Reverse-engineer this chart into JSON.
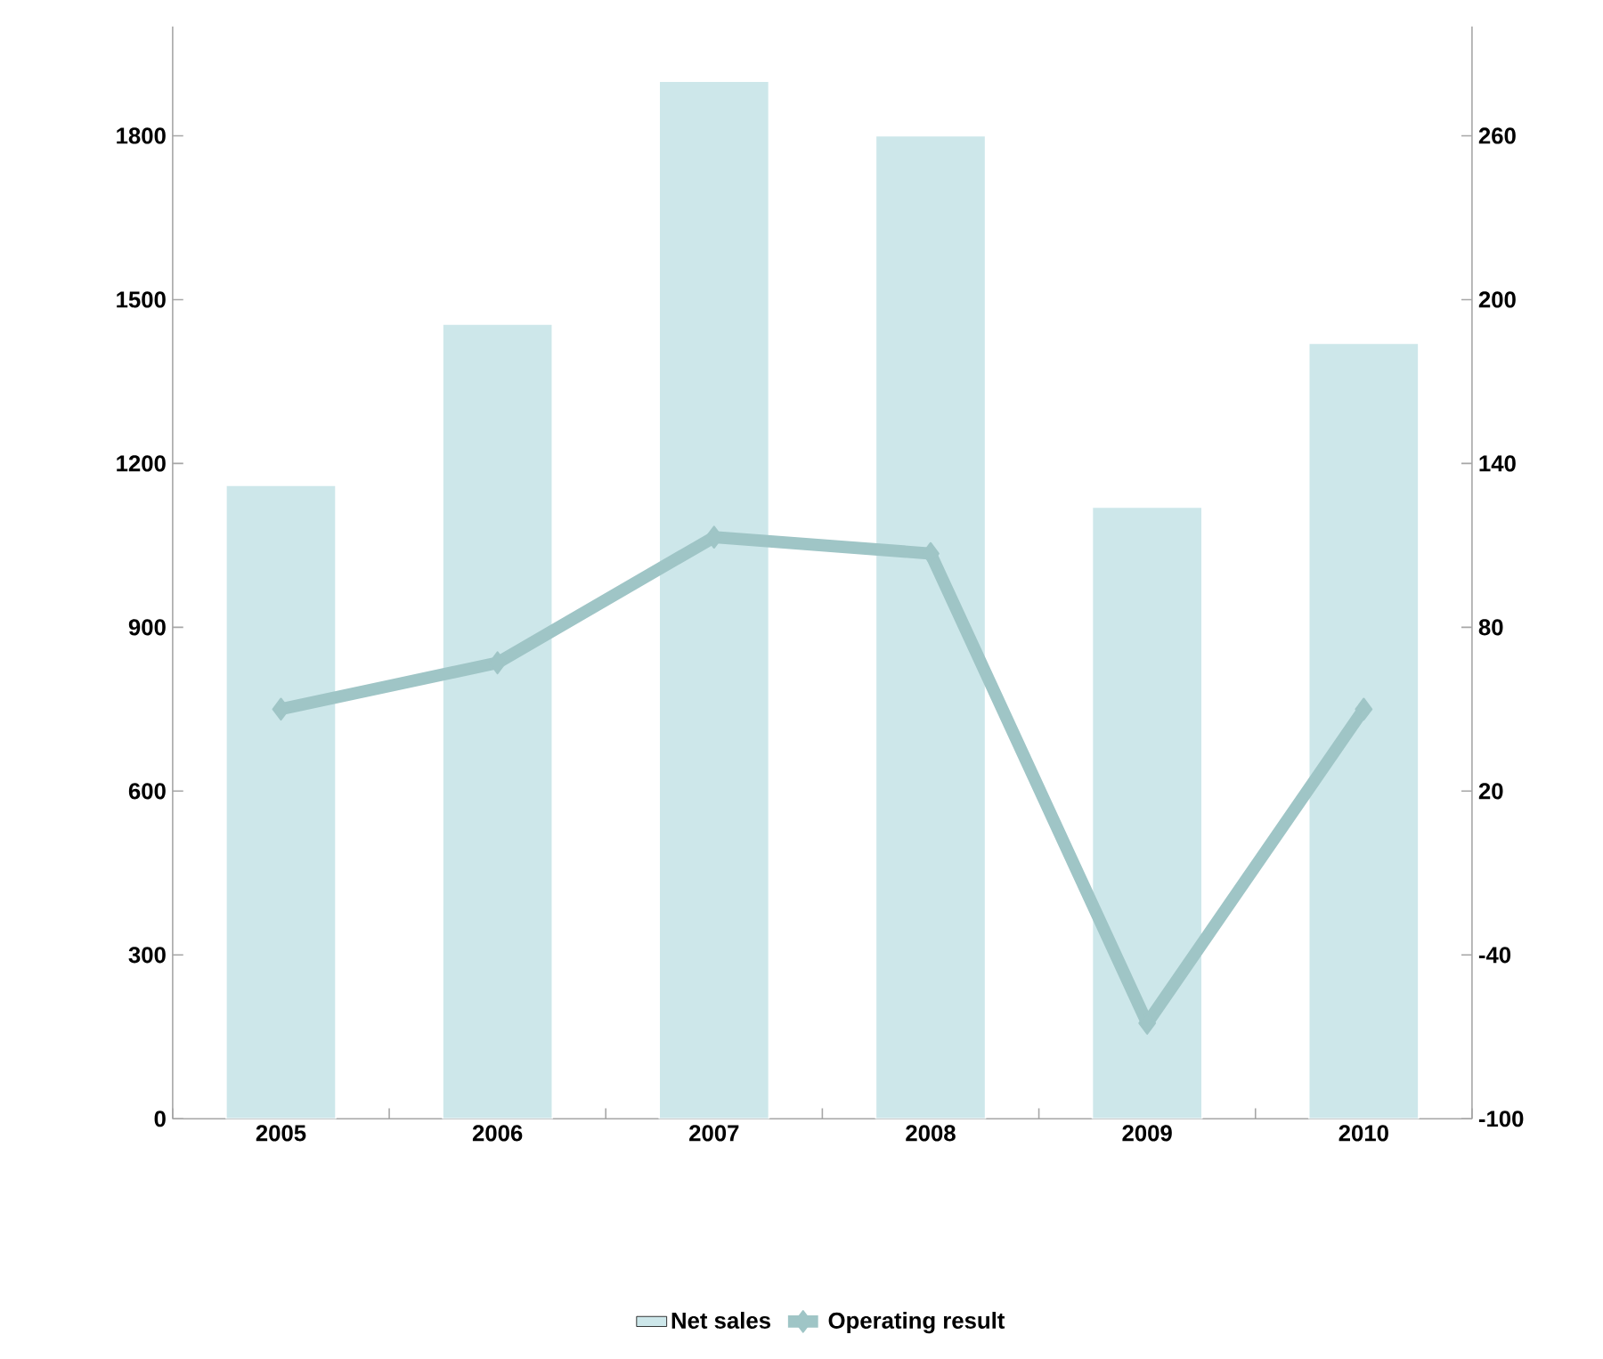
{
  "chart_data": {
    "type": "bar",
    "categories": [
      "2005",
      "2006",
      "2007",
      "2008",
      "2009",
      "2010"
    ],
    "series": [
      {
        "name": "Net sales",
        "color": "#cde7ea",
        "values": [
          1160,
          1455,
          1900,
          1800,
          1120,
          1420
        ]
      },
      {
        "name": "Operating result",
        "type": "line",
        "axis": "y2",
        "color": "#9fc5c6",
        "marker": "diamond",
        "values": [
          50,
          67,
          113,
          107,
          -65,
          50
        ]
      }
    ],
    "ylim": [
      0,
      2000
    ],
    "yticks": [
      0,
      300,
      600,
      900,
      1200,
      1500,
      1800
    ],
    "y2lim": [
      -100,
      300
    ],
    "y2ticks": [
      -100,
      -40,
      20,
      80,
      140,
      200,
      260
    ],
    "grid": false,
    "legend": "bottom"
  }
}
